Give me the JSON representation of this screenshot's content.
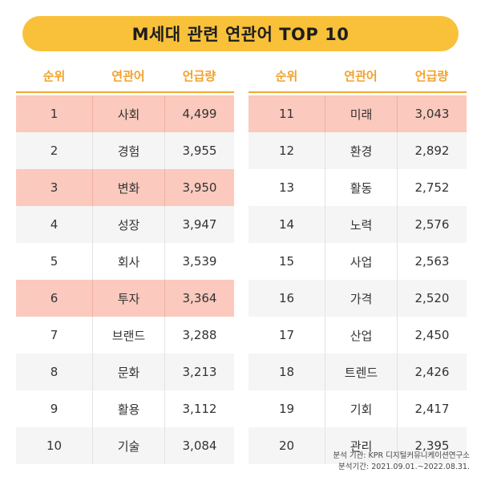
{
  "title": "M세대 관련 연관어 TOP 10",
  "headers": {
    "rank": "순위",
    "keyword": "연관어",
    "mentions": "언급량"
  },
  "left_rows": [
    {
      "rank": "1",
      "keyword": "사회",
      "mentions": "4,499",
      "highlight": true
    },
    {
      "rank": "2",
      "keyword": "경험",
      "mentions": "3,955",
      "highlight": false
    },
    {
      "rank": "3",
      "keyword": "변화",
      "mentions": "3,950",
      "highlight": true
    },
    {
      "rank": "4",
      "keyword": "성장",
      "mentions": "3,947",
      "highlight": false
    },
    {
      "rank": "5",
      "keyword": "회사",
      "mentions": "3,539",
      "highlight": false
    },
    {
      "rank": "6",
      "keyword": "투자",
      "mentions": "3,364",
      "highlight": true
    },
    {
      "rank": "7",
      "keyword": "브랜드",
      "mentions": "3,288",
      "highlight": false
    },
    {
      "rank": "8",
      "keyword": "문화",
      "mentions": "3,213",
      "highlight": false
    },
    {
      "rank": "9",
      "keyword": "활용",
      "mentions": "3,112",
      "highlight": false
    },
    {
      "rank": "10",
      "keyword": "기술",
      "mentions": "3,084",
      "highlight": false
    }
  ],
  "right_rows": [
    {
      "rank": "11",
      "keyword": "미래",
      "mentions": "3,043",
      "highlight": true
    },
    {
      "rank": "12",
      "keyword": "환경",
      "mentions": "2,892",
      "highlight": false
    },
    {
      "rank": "13",
      "keyword": "활동",
      "mentions": "2,752",
      "highlight": false
    },
    {
      "rank": "14",
      "keyword": "노력",
      "mentions": "2,576",
      "highlight": false
    },
    {
      "rank": "15",
      "keyword": "사업",
      "mentions": "2,563",
      "highlight": false
    },
    {
      "rank": "16",
      "keyword": "가격",
      "mentions": "2,520",
      "highlight": false
    },
    {
      "rank": "17",
      "keyword": "산업",
      "mentions": "2,450",
      "highlight": false
    },
    {
      "rank": "18",
      "keyword": "트렌드",
      "mentions": "2,426",
      "highlight": false
    },
    {
      "rank": "19",
      "keyword": "기회",
      "mentions": "2,417",
      "highlight": false
    },
    {
      "rank": "20",
      "keyword": "관리",
      "mentions": "2,395",
      "highlight": false
    }
  ],
  "footer": {
    "source": "분석 기관: KPR 디지털커뮤니케이션연구소",
    "period": "분석기간: 2021.09.01.~2022.08.31."
  },
  "colors": {
    "title_bg": "#f9c13a",
    "header_text": "#f2a22b",
    "highlight_row": "#fbc9bd",
    "alt_row": "#f5f5f5"
  }
}
